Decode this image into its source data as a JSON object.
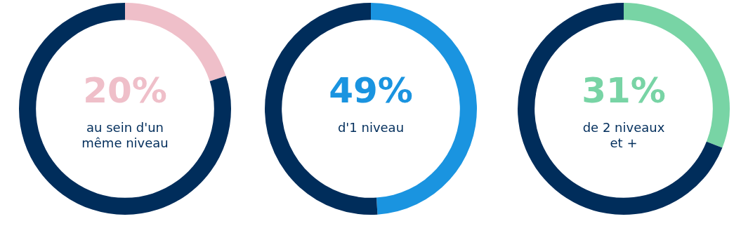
{
  "chart_data": [
    {
      "type": "donut",
      "categories": [
        "au sein d'un même niveau",
        null
      ],
      "values": [
        20,
        80
      ],
      "colors": [
        "#efbfc9",
        "#002d5b"
      ],
      "value_labels": [
        "20%",
        null
      ]
    },
    {
      "type": "donut",
      "categories": [
        "d'1 niveau",
        null
      ],
      "values": [
        49,
        51
      ],
      "colors": [
        "#1a94e0",
        "#002d5b"
      ],
      "value_labels": [
        "49%",
        null
      ]
    },
    {
      "type": "donut",
      "categories": [
        "de 2 niveaux et +",
        null
      ],
      "values": [
        31,
        69
      ],
      "colors": [
        "#78d4a5",
        "#002d5b"
      ],
      "value_labels": [
        "31%",
        null
      ]
    }
  ]
}
